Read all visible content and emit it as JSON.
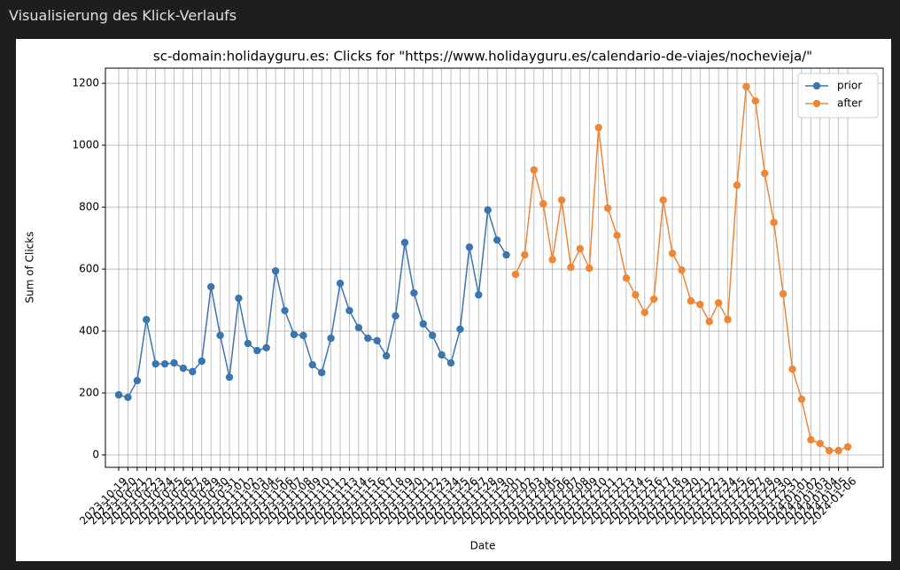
{
  "header": {
    "title": "Visualisierung des Klick-Verlaufs"
  },
  "chart_data": {
    "type": "line",
    "title": "sc-domain:holidayguru.es: Clicks for \"https://www.holidayguru.es/calendario-de-viajes/nochevieja/\"",
    "xlabel": "Date",
    "ylabel": "Sum of Clicks",
    "categories": [
      "2023-10-19",
      "2023-10-20",
      "2023-10-21",
      "2023-10-22",
      "2023-10-23",
      "2023-10-24",
      "2023-10-25",
      "2023-10-26",
      "2023-10-27",
      "2023-10-28",
      "2023-10-29",
      "2023-10-30",
      "2023-10-31",
      "2023-11-01",
      "2023-11-02",
      "2023-11-03",
      "2023-11-04",
      "2023-11-05",
      "2023-11-06",
      "2023-11-07",
      "2023-11-08",
      "2023-11-09",
      "2023-11-10",
      "2023-11-11",
      "2023-11-12",
      "2023-11-13",
      "2023-11-14",
      "2023-11-15",
      "2023-11-16",
      "2023-11-17",
      "2023-11-18",
      "2023-11-19",
      "2023-11-20",
      "2023-11-21",
      "2023-11-22",
      "2023-11-23",
      "2023-11-24",
      "2023-11-25",
      "2023-11-26",
      "2023-11-27",
      "2023-11-28",
      "2023-11-29",
      "2023-11-30",
      "2023-12-01",
      "2023-12-02",
      "2023-12-03",
      "2023-12-04",
      "2023-12-05",
      "2023-12-06",
      "2023-12-07",
      "2023-12-08",
      "2023-12-09",
      "2023-12-10",
      "2023-12-11",
      "2023-12-12",
      "2023-12-13",
      "2023-12-14",
      "2023-12-15",
      "2023-12-16",
      "2023-12-17",
      "2023-12-18",
      "2023-12-19",
      "2023-12-20",
      "2023-12-21",
      "2023-12-22",
      "2023-12-23",
      "2023-12-24",
      "2023-12-25",
      "2023-12-26",
      "2023-12-27",
      "2023-12-28",
      "2023-12-29",
      "2023-12-30",
      "2023-12-31",
      "2024-01-01",
      "2024-01-02",
      "2024-01-03",
      "2024-01-04",
      "2024-01-05",
      "2024-01-06"
    ],
    "series": [
      {
        "name": "prior",
        "color": "#3a75b0",
        "values": [
          194,
          186,
          240,
          437,
          294,
          294,
          297,
          280,
          269,
          303,
          543,
          386,
          251,
          506,
          360,
          337,
          346,
          594,
          466,
          389,
          386,
          291,
          266,
          377,
          554,
          466,
          411,
          377,
          369,
          320,
          449,
          686,
          523,
          423,
          386,
          323,
          297,
          406,
          671,
          517,
          791,
          694,
          646,
          null,
          null,
          null,
          null,
          null,
          null,
          null,
          null,
          null,
          null,
          null,
          null,
          null,
          null,
          null,
          null,
          null,
          null,
          null,
          null,
          null,
          null,
          null,
          null,
          null,
          null,
          null,
          null,
          null,
          null,
          null,
          null,
          null,
          null,
          null,
          null,
          null
        ]
      },
      {
        "name": "after",
        "color": "#ef8636",
        "values": [
          null,
          null,
          null,
          null,
          null,
          null,
          null,
          null,
          null,
          null,
          null,
          null,
          null,
          null,
          null,
          null,
          null,
          null,
          null,
          null,
          null,
          null,
          null,
          null,
          null,
          null,
          null,
          null,
          null,
          null,
          null,
          null,
          null,
          null,
          null,
          null,
          null,
          null,
          null,
          null,
          null,
          null,
          null,
          583,
          646,
          920,
          811,
          631,
          823,
          606,
          666,
          603,
          1057,
          797,
          709,
          571,
          517,
          460,
          503,
          823,
          651,
          597,
          497,
          486,
          431,
          491,
          437,
          871,
          1189,
          1143,
          909,
          751,
          520,
          277,
          180,
          49,
          37,
          14,
          14,
          26
        ]
      }
    ],
    "ylim": [
      -40,
      1249
    ],
    "yticks": [
      0,
      200,
      400,
      600,
      800,
      1000,
      1200
    ],
    "grid": true,
    "legend": "upper right"
  }
}
